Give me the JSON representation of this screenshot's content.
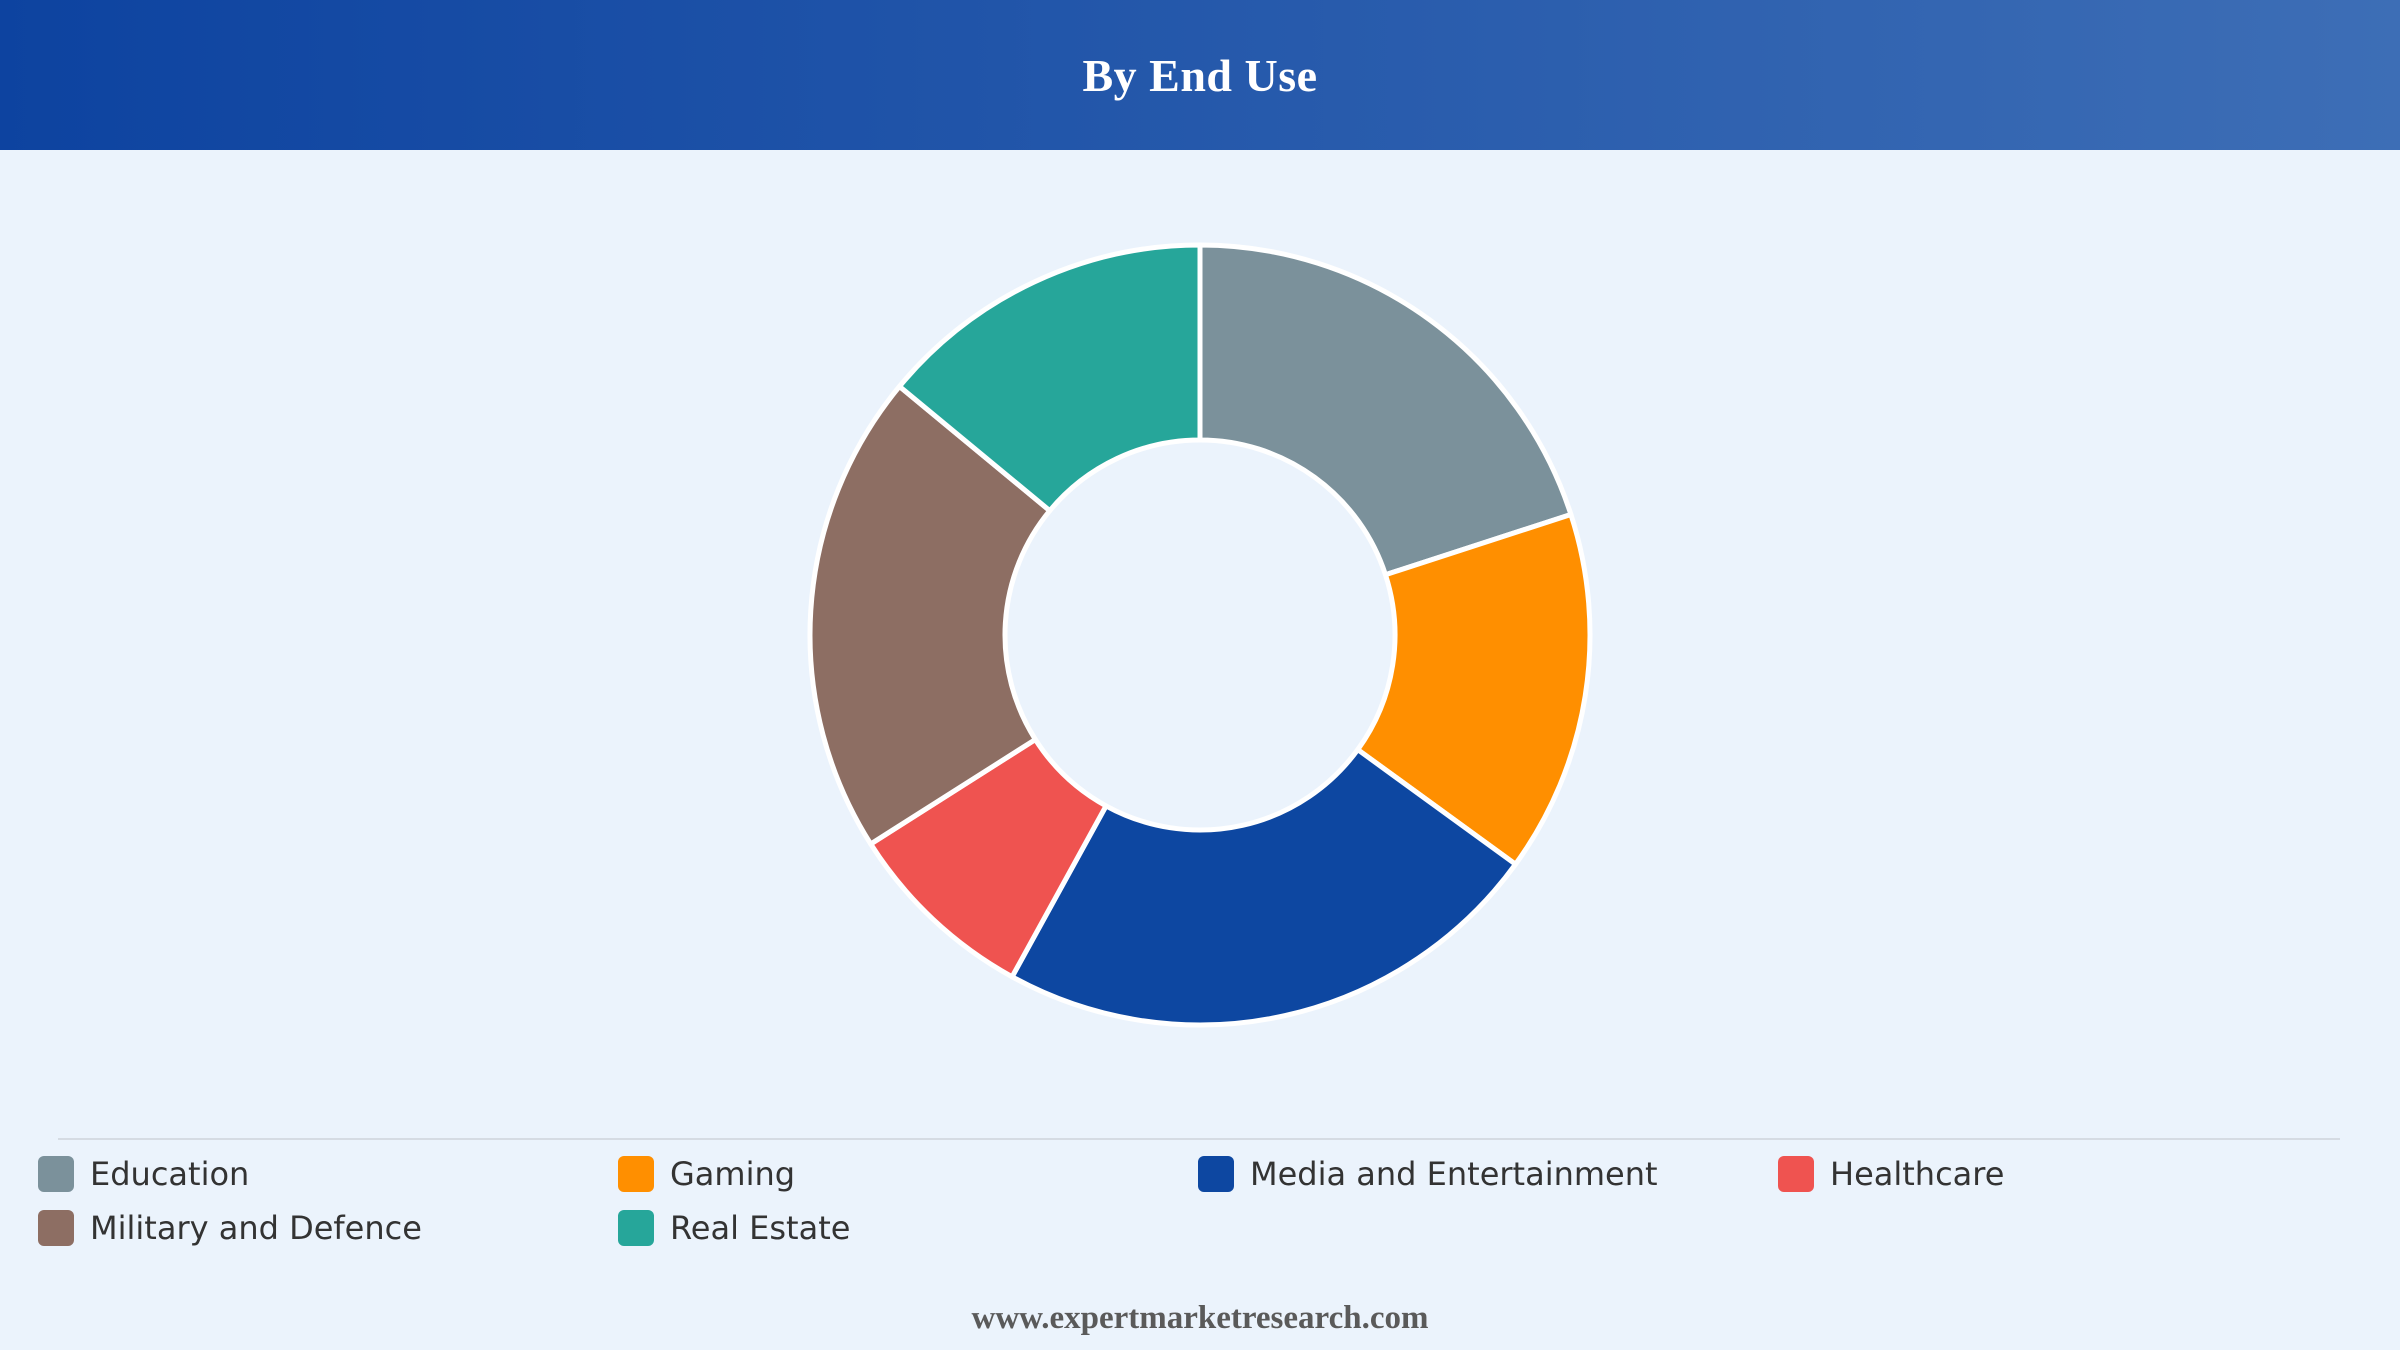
{
  "header": {
    "title": "By End Use"
  },
  "chart_data": {
    "type": "pie",
    "style": "donut",
    "title": "By End Use",
    "categories": [
      "Education",
      "Gaming",
      "Media and Entertainment",
      "Healthcare",
      "Military and Defence",
      "Real Estate"
    ],
    "values": [
      20,
      15,
      23,
      8,
      20,
      14
    ],
    "colors": [
      "#7b919b",
      "#ff8f00",
      "#0d47a1",
      "#ef5350",
      "#8d6e63",
      "#26a69a"
    ],
    "legend_position": "bottom",
    "start_angle": "top",
    "direction": "clockwise"
  },
  "legend": {
    "items": [
      {
        "label": "Education",
        "color": "#7b919b"
      },
      {
        "label": "Gaming",
        "color": "#ff8f00"
      },
      {
        "label": "Media and Entertainment",
        "color": "#0d47a1"
      },
      {
        "label": "Healthcare",
        "color": "#ef5350"
      },
      {
        "label": "Military and Defence",
        "color": "#8d6e63"
      },
      {
        "label": "Real Estate",
        "color": "#26a69a"
      }
    ]
  },
  "footer": {
    "source": "www.expertmarketresearch.com"
  }
}
